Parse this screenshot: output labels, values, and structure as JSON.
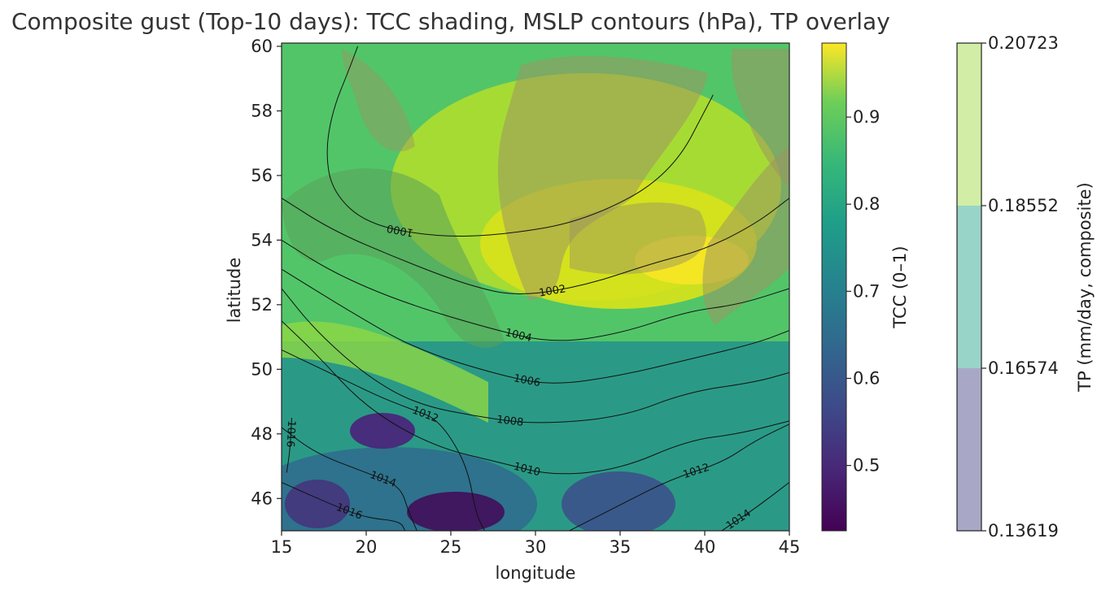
{
  "title": "Composite gust (Top-10 days): TCC shading, MSLP contours (hPa), TP overlay",
  "chart_data": {
    "type": "heatmap",
    "title": "Composite gust (Top-10 days): TCC shading, MSLP contours (hPa), TP overlay",
    "xlabel": "longitude",
    "ylabel": "latitude",
    "xlim": [
      15,
      45
    ],
    "ylim": [
      45,
      60
    ],
    "xticks": [
      15,
      20,
      25,
      30,
      35,
      40,
      45
    ],
    "yticks": [
      46,
      48,
      50,
      52,
      54,
      56,
      58,
      60
    ],
    "tcc_colorbar": {
      "label": "TCC (0–1)",
      "range": [
        0.425,
        0.985
      ],
      "ticks": [
        0.5,
        0.6,
        0.7,
        0.8,
        0.9
      ],
      "colormap": "viridis"
    },
    "tp_colorbar": {
      "label": "TP (mm/day, composite)",
      "levels": [
        "0.13619",
        "0.16574",
        "0.18552",
        "0.20723"
      ],
      "colors": [
        "#a8a8c6",
        "#99d4c8",
        "#d2eea6"
      ]
    },
    "mslp_contours": [
      {
        "level": 1000,
        "label": "1000",
        "points": [
          [
            40.5,
            58.5
          ],
          [
            38,
            56
          ],
          [
            33,
            54.6
          ],
          [
            28,
            54.15
          ],
          [
            24,
            54.1
          ],
          [
            20,
            54.5
          ],
          [
            18,
            55.5
          ],
          [
            17.6,
            56.7
          ],
          [
            18,
            58
          ],
          [
            19,
            59.3
          ],
          [
            19.5,
            60
          ]
        ]
      },
      {
        "level": 1002,
        "label": "1002",
        "points": [
          [
            15,
            55.3
          ],
          [
            18,
            54.3
          ],
          [
            22,
            53.4
          ],
          [
            26,
            52.6
          ],
          [
            29,
            52.25
          ],
          [
            33,
            52.6
          ],
          [
            37,
            53.3
          ],
          [
            40,
            53.7
          ],
          [
            43,
            54.5
          ],
          [
            45,
            55.3
          ]
        ]
      },
      {
        "level": 1004,
        "label": "1004",
        "points": [
          [
            15,
            54
          ],
          [
            18,
            53
          ],
          [
            22,
            52.1
          ],
          [
            27,
            51.3
          ],
          [
            31,
            50.8
          ],
          [
            35,
            51.1
          ],
          [
            39,
            51.8
          ],
          [
            42,
            52
          ],
          [
            45,
            52.5
          ]
        ]
      },
      {
        "level": 1006,
        "label": "1006",
        "points": [
          [
            15,
            53.1
          ],
          [
            19,
            51.8
          ],
          [
            23,
            50.6
          ],
          [
            28,
            49.8
          ],
          [
            31,
            49.5
          ],
          [
            35,
            49.8
          ],
          [
            39,
            50.3
          ],
          [
            43,
            50.8
          ],
          [
            45,
            51.2
          ]
        ]
      },
      {
        "level": 1008,
        "label": "1008",
        "points": [
          [
            15,
            52.5
          ],
          [
            17,
            51.2
          ],
          [
            20,
            49.8
          ],
          [
            23,
            48.9
          ],
          [
            27,
            48.5
          ],
          [
            30,
            48.3
          ],
          [
            35,
            48.5
          ],
          [
            39,
            49.3
          ],
          [
            43,
            49.6
          ],
          [
            45,
            49.9
          ]
        ]
      },
      {
        "level": 1010,
        "label": "1010",
        "points": [
          [
            15,
            51.5
          ],
          [
            17,
            50.5
          ],
          [
            20,
            48.8
          ],
          [
            24,
            47.6
          ],
          [
            28,
            47.1
          ],
          [
            31,
            46.7
          ],
          [
            35,
            46.9
          ],
          [
            39,
            47.8
          ],
          [
            42,
            48
          ],
          [
            45,
            48.4
          ]
        ]
      },
      {
        "level": 1012,
        "label": "1012",
        "points": [
          [
            15,
            50.6
          ],
          [
            17,
            50.1
          ],
          [
            19,
            49.6
          ],
          [
            21,
            49.1
          ],
          [
            23,
            48.7
          ],
          [
            24,
            48.5
          ],
          [
            25,
            47.9
          ],
          [
            26,
            46.9
          ],
          [
            26.5,
            45.5
          ],
          [
            27,
            45
          ]
        ]
      },
      {
        "level": 1012,
        "label": "1012",
        "points": [
          [
            32,
            45
          ],
          [
            35,
            45.8
          ],
          [
            38,
            46.6
          ],
          [
            41,
            47.1
          ],
          [
            43,
            47.8
          ],
          [
            45,
            48.3
          ]
        ]
      },
      {
        "level": 1014,
        "label": "1014",
        "points": [
          [
            15,
            48.2
          ],
          [
            17,
            47.4
          ],
          [
            20,
            46.8
          ],
          [
            22,
            46.4
          ],
          [
            22.5,
            45.6
          ],
          [
            23,
            45
          ]
        ]
      },
      {
        "level": 1014,
        "label": "1014",
        "points": [
          [
            41,
            45
          ],
          [
            43,
            45.7
          ],
          [
            45,
            46.5
          ]
        ]
      },
      {
        "level": 1016,
        "label": "1016",
        "points": [
          [
            15,
            46.5
          ],
          [
            18,
            45.8
          ],
          [
            20,
            45.4
          ],
          [
            22,
            45.3
          ],
          [
            22.3,
            45
          ]
        ]
      },
      {
        "level": 1016,
        "label": "1016",
        "points": [
          [
            15.6,
            48.5
          ],
          [
            15.5,
            47.5
          ],
          [
            15.3,
            46.8
          ]
        ]
      }
    ]
  }
}
